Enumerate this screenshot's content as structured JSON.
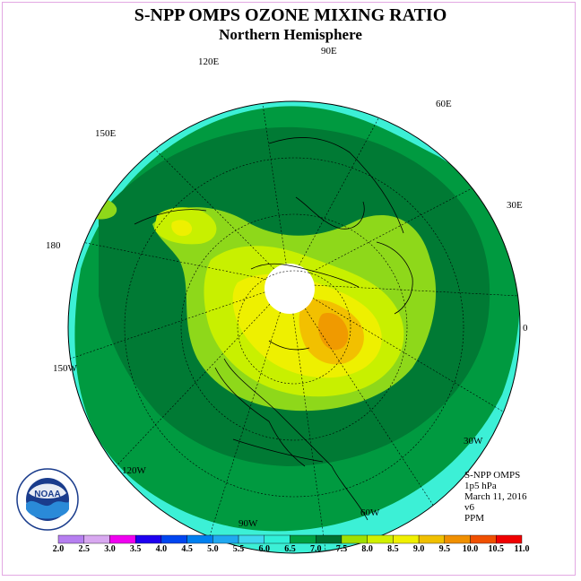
{
  "title": "S-NPP OMPS OZONE MIXING RATIO",
  "subtitle": "Northern Hemisphere",
  "longitude_labels": [
    {
      "key": "90E",
      "text": "90E"
    },
    {
      "key": "60E",
      "text": "60E"
    },
    {
      "key": "30E",
      "text": "30E"
    },
    {
      "key": "0",
      "text": "0"
    },
    {
      "key": "30W",
      "text": "30W"
    },
    {
      "key": "60W",
      "text": "60W"
    },
    {
      "key": "90W",
      "text": "90W"
    },
    {
      "key": "120W",
      "text": "120W"
    },
    {
      "key": "150W",
      "text": "150W"
    },
    {
      "key": "180",
      "text": "180"
    },
    {
      "key": "150E",
      "text": "150E"
    },
    {
      "key": "120E",
      "text": "120E"
    }
  ],
  "info": {
    "instrument": "S-NPP OMPS",
    "level": "1p5 hPa",
    "date": "March 11, 2016",
    "version": "v6",
    "units": "PPM"
  },
  "logo": {
    "text": "NOAA",
    "icon": "noaa-logo-icon"
  },
  "colorbar": {
    "labels": [
      "2.0",
      "2.5",
      "3.0",
      "3.5",
      "4.0",
      "4.5",
      "5.0",
      "5.5",
      "6.0",
      "6.5",
      "7.0",
      "7.5",
      "8.0",
      "8.5",
      "9.0",
      "9.5",
      "10.0",
      "10.5",
      "11.0"
    ],
    "colors": [
      "#b67ff0",
      "#d8a8f0",
      "#f000f0",
      "#1f00f0",
      "#0046f0",
      "#0080f0",
      "#20a8f0",
      "#40d8f0",
      "#30f0d8",
      "#00a040",
      "#007030",
      "#a0e000",
      "#d0f000",
      "#f0f000",
      "#f0c000",
      "#f09000",
      "#f05000",
      "#f00000",
      "#8a4a30"
    ]
  },
  "map_colors": {
    "ocean_outer": "#3cf0d6",
    "level_6_0": "#009a40",
    "level_6_5": "#007a34",
    "level_7_0": "#8ed81a",
    "level_7_5": "#c8f000",
    "level_8_0": "#eef000",
    "level_8_5": "#f2c000",
    "level_9_0": "#f09a00",
    "polar_cap": "#ffffff"
  }
}
